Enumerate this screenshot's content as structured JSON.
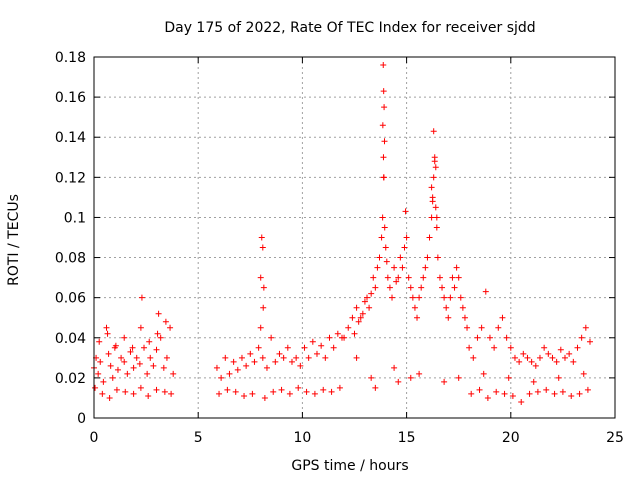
{
  "chart_data": {
    "type": "scatter",
    "title": "Day 175 of 2022, Rate Of TEC Index for receiver sjdd",
    "xlabel": "GPS time / hours",
    "ylabel": "ROTI / TECUs",
    "xlim": [
      0,
      25
    ],
    "ylim": [
      0,
      0.18
    ],
    "x_ticks": [
      0,
      5,
      10,
      15,
      20,
      25
    ],
    "x_tick_labels": [
      "0",
      "5",
      "10",
      "15",
      "20",
      "25"
    ],
    "y_ticks": [
      0,
      0.02,
      0.04,
      0.06,
      0.08,
      0.1,
      0.12,
      0.14,
      0.16,
      0.18
    ],
    "y_tick_labels": [
      "0",
      "0.02",
      "0.04",
      "0.06",
      "0.08",
      "0.1",
      "0.12",
      "0.14",
      "0.16",
      "0.18"
    ],
    "grid": true,
    "marker": "+",
    "color": "#ff0000",
    "series": [
      {
        "name": "ROTI",
        "x": [
          0.0,
          0.1,
          0.2,
          0.3,
          0.45,
          0.6,
          0.7,
          0.8,
          0.9,
          1.0,
          1.15,
          1.3,
          1.45,
          1.6,
          1.75,
          1.9,
          2.05,
          2.2,
          2.3,
          2.4,
          2.55,
          2.7,
          2.85,
          3.0,
          3.1,
          3.2,
          3.35,
          3.5,
          3.65,
          3.8,
          0.05,
          0.4,
          0.75,
          1.1,
          1.5,
          1.9,
          2.25,
          2.6,
          3.0,
          3.4,
          3.7,
          0.25,
          0.65,
          1.05,
          1.45,
          1.85,
          2.25,
          2.65,
          3.05,
          3.45,
          5.9,
          6.1,
          6.3,
          6.5,
          6.7,
          6.9,
          7.1,
          7.3,
          7.5,
          7.7,
          7.9,
          8.0,
          8.1,
          8.3,
          8.5,
          8.7,
          8.9,
          9.1,
          9.3,
          9.5,
          9.7,
          9.9,
          10.1,
          10.3,
          10.5,
          10.7,
          10.9,
          11.1,
          11.3,
          11.5,
          11.7,
          11.9,
          8.05,
          8.1,
          8.0,
          8.15,
          8.12,
          6.0,
          6.4,
          6.8,
          7.2,
          7.6,
          8.2,
          8.6,
          9.0,
          9.4,
          9.8,
          10.2,
          10.6,
          11.0,
          11.4,
          11.8,
          12.0,
          12.2,
          12.4,
          12.5,
          12.6,
          12.7,
          12.8,
          12.9,
          13.0,
          13.1,
          13.2,
          13.3,
          13.4,
          13.5,
          13.6,
          13.7,
          13.8,
          13.85,
          13.9,
          13.95,
          14.0,
          14.05,
          14.1,
          14.2,
          14.3,
          14.4,
          14.5,
          14.6,
          14.7,
          14.8,
          14.9,
          15.0,
          15.1,
          15.2,
          15.3,
          15.4,
          15.5,
          15.6,
          15.7,
          15.8,
          15.9,
          16.0,
          16.1,
          16.2,
          16.25,
          16.3,
          16.35,
          16.4,
          16.45,
          16.5,
          16.6,
          16.7,
          16.8,
          16.9,
          17.0,
          17.1,
          17.2,
          17.3,
          17.4,
          17.5,
          17.6,
          17.7,
          17.8,
          17.9,
          13.88,
          13.9,
          13.92,
          13.86,
          13.94,
          13.89,
          13.91,
          14.95,
          16.3,
          16.35,
          16.4,
          16.2,
          16.25,
          16.45,
          12.6,
          13.3,
          13.5,
          14.4,
          14.6,
          15.2,
          15.6,
          16.8,
          17.5,
          18.0,
          18.2,
          18.4,
          18.6,
          18.8,
          19.0,
          19.2,
          19.4,
          19.6,
          19.8,
          20.0,
          20.2,
          20.4,
          20.6,
          20.8,
          21.0,
          21.2,
          21.4,
          21.6,
          21.8,
          22.0,
          22.2,
          22.4,
          22.6,
          22.8,
          23.0,
          23.2,
          23.4,
          23.6,
          23.8,
          18.1,
          18.5,
          18.9,
          19.3,
          19.7,
          20.1,
          20.5,
          20.9,
          21.3,
          21.7,
          22.1,
          22.5,
          22.9,
          23.3,
          23.7,
          18.7,
          19.9,
          21.1,
          22.3,
          23.5
        ],
        "y": [
          0.025,
          0.03,
          0.022,
          0.028,
          0.018,
          0.045,
          0.032,
          0.026,
          0.02,
          0.035,
          0.024,
          0.03,
          0.028,
          0.022,
          0.033,
          0.025,
          0.03,
          0.027,
          0.06,
          0.035,
          0.022,
          0.03,
          0.026,
          0.034,
          0.052,
          0.04,
          0.025,
          0.03,
          0.045,
          0.022,
          0.015,
          0.012,
          0.01,
          0.014,
          0.013,
          0.012,
          0.015,
          0.011,
          0.014,
          0.013,
          0.012,
          0.038,
          0.042,
          0.036,
          0.04,
          0.035,
          0.045,
          0.038,
          0.042,
          0.048,
          0.025,
          0.02,
          0.03,
          0.022,
          0.028,
          0.024,
          0.03,
          0.026,
          0.032,
          0.028,
          0.035,
          0.045,
          0.03,
          0.025,
          0.04,
          0.028,
          0.032,
          0.03,
          0.035,
          0.028,
          0.03,
          0.026,
          0.035,
          0.03,
          0.038,
          0.032,
          0.036,
          0.03,
          0.04,
          0.035,
          0.042,
          0.04,
          0.09,
          0.085,
          0.07,
          0.065,
          0.055,
          0.012,
          0.014,
          0.013,
          0.011,
          0.012,
          0.01,
          0.013,
          0.014,
          0.012,
          0.015,
          0.013,
          0.012,
          0.014,
          0.013,
          0.015,
          0.04,
          0.045,
          0.05,
          0.042,
          0.055,
          0.048,
          0.05,
          0.052,
          0.058,
          0.06,
          0.055,
          0.062,
          0.07,
          0.065,
          0.075,
          0.08,
          0.09,
          0.1,
          0.12,
          0.095,
          0.085,
          0.078,
          0.07,
          0.065,
          0.06,
          0.075,
          0.068,
          0.07,
          0.08,
          0.075,
          0.085,
          0.09,
          0.07,
          0.065,
          0.06,
          0.055,
          0.05,
          0.06,
          0.065,
          0.07,
          0.075,
          0.08,
          0.09,
          0.1,
          0.11,
          0.12,
          0.128,
          0.105,
          0.095,
          0.08,
          0.07,
          0.065,
          0.06,
          0.055,
          0.05,
          0.06,
          0.07,
          0.065,
          0.075,
          0.07,
          0.06,
          0.055,
          0.05,
          0.045,
          0.176,
          0.163,
          0.155,
          0.146,
          0.138,
          0.13,
          0.12,
          0.103,
          0.143,
          0.13,
          0.125,
          0.115,
          0.108,
          0.1,
          0.03,
          0.02,
          0.015,
          0.025,
          0.018,
          0.02,
          0.022,
          0.018,
          0.02,
          0.035,
          0.03,
          0.04,
          0.045,
          0.063,
          0.04,
          0.035,
          0.045,
          0.05,
          0.04,
          0.035,
          0.03,
          0.028,
          0.032,
          0.03,
          0.028,
          0.026,
          0.03,
          0.035,
          0.032,
          0.03,
          0.028,
          0.034,
          0.03,
          0.032,
          0.028,
          0.035,
          0.04,
          0.045,
          0.038,
          0.012,
          0.014,
          0.01,
          0.013,
          0.012,
          0.011,
          0.008,
          0.012,
          0.013,
          0.014,
          0.012,
          0.013,
          0.011,
          0.012,
          0.014,
          0.022,
          0.02,
          0.018,
          0.02,
          0.022
        ]
      }
    ]
  }
}
